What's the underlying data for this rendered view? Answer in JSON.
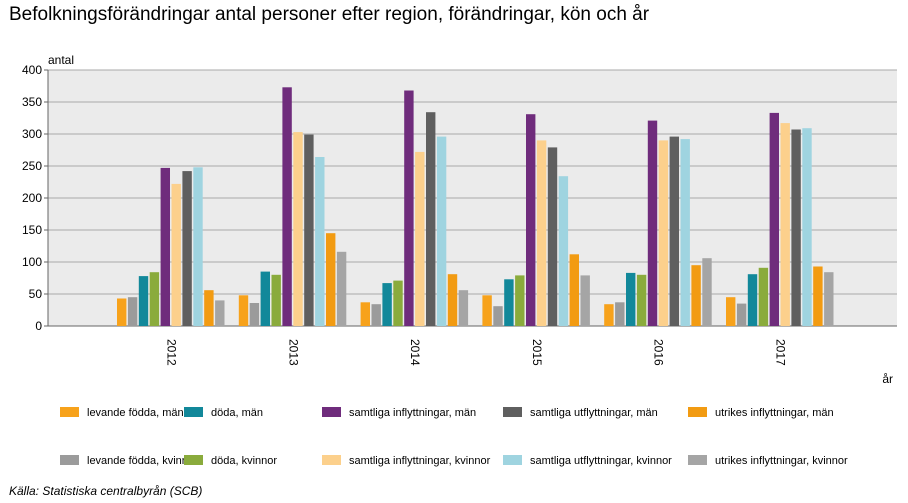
{
  "title": "Befolkningsförändringar antal personer efter region, förändringar, kön och år",
  "source": "Källa: Statistiska centralbyrån (SCB)",
  "chart_data": {
    "type": "bar",
    "title": "Befolkningsförändringar antal personer efter region, förändringar, kön och år",
    "ylabel": "antal",
    "xlabel": "år",
    "ylim": [
      0,
      400
    ],
    "yticks": [
      0,
      50,
      100,
      150,
      200,
      250,
      300,
      350,
      400
    ],
    "grid": true,
    "legend_position": "bottom",
    "categories": [
      "2012",
      "2013",
      "2014",
      "2015",
      "2016",
      "2017"
    ],
    "series": [
      {
        "name": "levande födda, män",
        "color": "#f7a21b",
        "values": [
          43,
          48,
          37,
          48,
          34,
          45
        ]
      },
      {
        "name": "levande födda, kvinnor",
        "color": "#9b9b9b",
        "values": [
          45,
          36,
          34,
          31,
          37,
          35
        ]
      },
      {
        "name": "döda, män",
        "color": "#12889a",
        "values": [
          78,
          85,
          67,
          73,
          83,
          81
        ]
      },
      {
        "name": "döda, kvinnor",
        "color": "#8aab3c",
        "values": [
          84,
          80,
          71,
          79,
          80,
          91
        ]
      },
      {
        "name": "samtliga inflyttningar, män",
        "color": "#6f2c7c",
        "values": [
          247,
          373,
          368,
          331,
          321,
          333
        ]
      },
      {
        "name": "samtliga inflyttningar, kvinnor",
        "color": "#fcd08c",
        "values": [
          222,
          303,
          272,
          290,
          290,
          317
        ]
      },
      {
        "name": "samtliga utflyttningar, män",
        "color": "#5f5f5f",
        "values": [
          242,
          299,
          334,
          279,
          296,
          307
        ]
      },
      {
        "name": "samtliga utflyttningar, kvinnor",
        "color": "#9fd4e0",
        "values": [
          248,
          264,
          296,
          234,
          292,
          309
        ]
      },
      {
        "name": "utrikes inflyttningar, män",
        "color": "#f29b12",
        "values": [
          56,
          145,
          81,
          112,
          95,
          93
        ]
      },
      {
        "name": "utrikes inflyttningar, kvinnor",
        "color": "#a5a5a5",
        "values": [
          40,
          116,
          56,
          79,
          106,
          84
        ]
      }
    ],
    "legend_order": [
      "levande födda, män",
      "döda, män",
      "samtliga inflyttningar, män",
      "samtliga utflyttningar, män",
      "utrikes inflyttningar, män",
      "levande födda, kvinnor",
      "döda, kvinnor",
      "samtliga inflyttningar, kvinnor",
      "samtliga utflyttningar, kvinnor",
      "utrikes inflyttningar, kvinnor"
    ]
  }
}
